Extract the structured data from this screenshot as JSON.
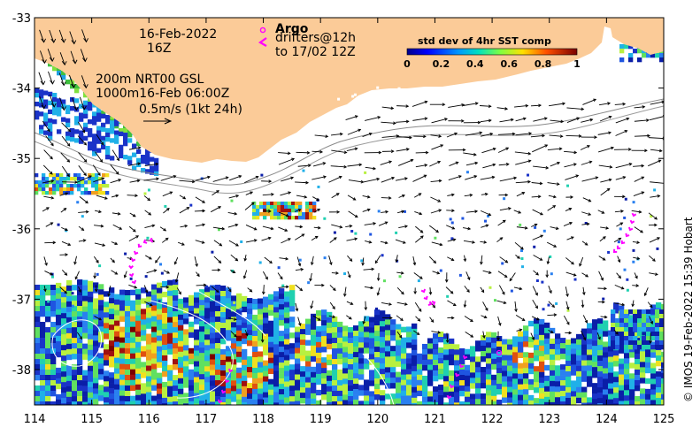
{
  "header": {
    "date_line1": "16-Feb-2022",
    "date_line2": "16Z",
    "argo_label": "Argo",
    "drifters_label": "drifters@12h",
    "drifters_to": "to 17/02 12Z"
  },
  "current_info": {
    "line1": "200m   NRT00 GSL",
    "line2": "1000m16-Feb 06:00Z",
    "scale": "0.5m/s (1kt 24h)"
  },
  "colorbar": {
    "title": "std dev of 4hr SST comp",
    "ticks": [
      "0",
      "0.2",
      "0.4",
      "0.6",
      "0.8",
      "1"
    ]
  },
  "credit": "© IMOS 19-Feb-2022 15:39 Hobart",
  "axes": {
    "x_ticks": [
      "114",
      "115",
      "116",
      "117",
      "118",
      "119",
      "120",
      "121",
      "122",
      "123",
      "124",
      "125"
    ],
    "y_ticks": [
      "-33",
      "-34",
      "-35",
      "-36",
      "-37",
      "-38"
    ]
  },
  "colors": {
    "land": "#fbcb98",
    "current_arrow": "#000000",
    "drifter": "#ff00ff",
    "contour_200m": "#808080",
    "sst_low": "#1a33c8",
    "sst_high": "#8b0000"
  },
  "icons": {
    "argo_marker": "magenta-circle",
    "drifter_marker": "magenta-chevron"
  }
}
